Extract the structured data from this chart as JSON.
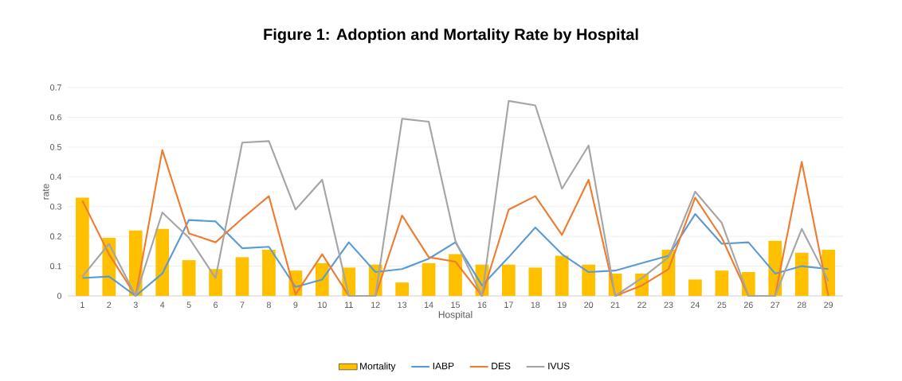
{
  "chart_data": {
    "type": "bar",
    "title": "Figure 1:  Adoption and Mortality Rate by Hospital",
    "xlabel": "Hospital",
    "ylabel": "rate",
    "categories": [
      "1",
      "2",
      "3",
      "4",
      "5",
      "6",
      "7",
      "8",
      "9",
      "10",
      "11",
      "12",
      "13",
      "14",
      "15",
      "16",
      "17",
      "18",
      "19",
      "20",
      "21",
      "22",
      "23",
      "24",
      "25",
      "26",
      "27",
      "28",
      "29"
    ],
    "series": [
      {
        "name": "Mortality",
        "color": "#ffc000",
        "values": [
          0.33,
          0.195,
          0.22,
          0.225,
          0.12,
          0.09,
          0.13,
          0.155,
          0.085,
          0.11,
          0.095,
          0.105,
          0.045,
          0.11,
          0.14,
          0.105,
          0.105,
          0.095,
          0.135,
          0.105,
          0.075,
          0.075,
          0.155,
          0.055,
          0.085,
          0.08,
          0.185,
          0.145,
          0.155
        ]
      },
      {
        "name": "IABP",
        "type": "line",
        "color": "#5b9bd5",
        "values": [
          0.06,
          0.065,
          0,
          0.075,
          0.255,
          0.25,
          0.16,
          0.165,
          0.03,
          0.055,
          0.18,
          0.08,
          0.09,
          0.125,
          0.18,
          0.035,
          0.13,
          0.23,
          0.14,
          0.08,
          0.085,
          0.11,
          0.135,
          0.275,
          0.175,
          0.18,
          0.075,
          0.1,
          0.09
        ]
      },
      {
        "name": "DES",
        "type": "line",
        "color": "#ed7d31",
        "values": [
          0.32,
          0.14,
          0,
          0.49,
          0.21,
          0.18,
          0.26,
          0.335,
          0.005,
          0.14,
          0,
          0,
          0.27,
          0.13,
          0.115,
          0,
          0.29,
          0.335,
          0.205,
          0.39,
          0,
          0.035,
          0.09,
          0.33,
          0.195,
          0,
          0,
          0.45,
          0
        ]
      },
      {
        "name": "IVUS",
        "type": "line",
        "color": "#a5a5a5",
        "values": [
          0.065,
          0.175,
          0,
          0.28,
          0.195,
          0.06,
          0.515,
          0.52,
          0.29,
          0.39,
          0,
          0,
          0.595,
          0.585,
          0.185,
          0,
          0.655,
          0.64,
          0.36,
          0.505,
          0,
          0.06,
          0.13,
          0.35,
          0.245,
          0,
          0,
          0.225,
          0.05
        ]
      }
    ],
    "ylim": [
      0,
      0.7
    ],
    "yticks": [
      0,
      0.1,
      0.2,
      0.3,
      0.4,
      0.5,
      0.6,
      0.7
    ],
    "grid": "y",
    "legend": "bottom"
  }
}
